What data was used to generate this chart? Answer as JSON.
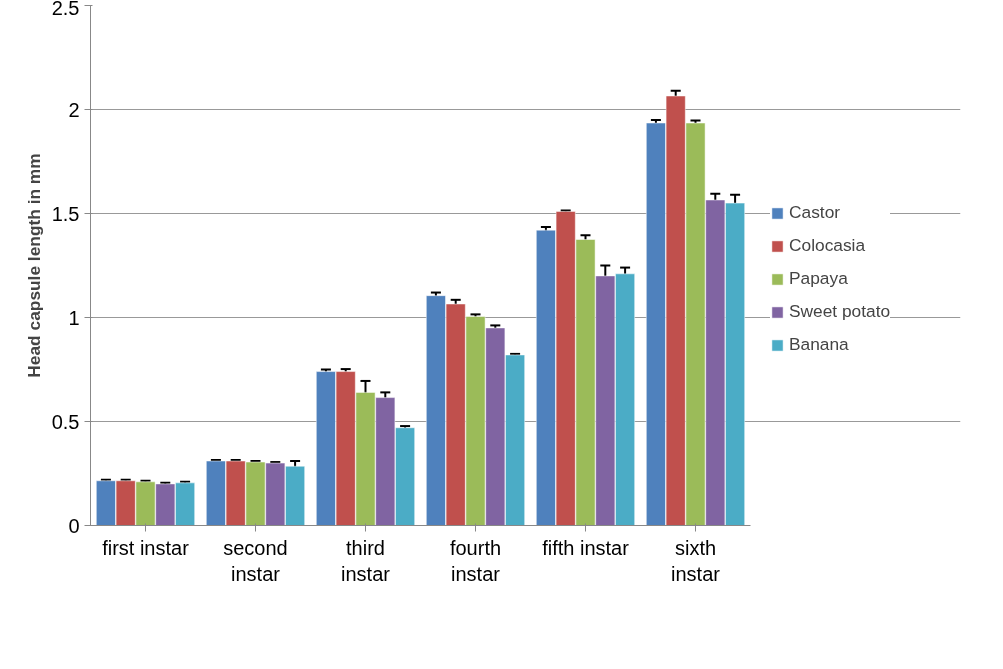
{
  "chart_data": {
    "type": "bar",
    "ylabel": "Head capsule length in mm",
    "categories": [
      "first instar",
      "second instar",
      "third instar",
      "fourth instar",
      "fifth instar",
      "sixth instar"
    ],
    "series": [
      {
        "name": "Castor",
        "color": "#4f81bd",
        "values": [
          0.215,
          0.31,
          0.74,
          1.105,
          1.42,
          1.935
        ],
        "errors": [
          0.005,
          0.005,
          0.01,
          0.015,
          0.015,
          0.015
        ]
      },
      {
        "name": "Colocasia",
        "color": "#c0504d",
        "values": [
          0.215,
          0.31,
          0.74,
          1.065,
          1.51,
          2.065
        ],
        "errors": [
          0.005,
          0.005,
          0.012,
          0.02,
          0.005,
          0.025
        ]
      },
      {
        "name": "Papaya",
        "color": "#9bbb59",
        "values": [
          0.21,
          0.305,
          0.64,
          1.005,
          1.375,
          1.935
        ],
        "errors": [
          0.005,
          0.005,
          0.055,
          0.01,
          0.02,
          0.012
        ]
      },
      {
        "name": "Sweet potato",
        "color": "#8064a2",
        "values": [
          0.2,
          0.3,
          0.615,
          0.95,
          1.2,
          1.565
        ],
        "errors": [
          0.005,
          0.005,
          0.025,
          0.012,
          0.05,
          0.03
        ]
      },
      {
        "name": "Banana",
        "color": "#4bacc6",
        "values": [
          0.205,
          0.285,
          0.47,
          0.82,
          1.21,
          1.55
        ],
        "errors": [
          0.005,
          0.025,
          0.008,
          0.005,
          0.03,
          0.04
        ]
      }
    ],
    "ylim": [
      0,
      2.5
    ],
    "yticks": [
      0,
      0.5,
      1,
      1.5,
      2,
      2.5
    ],
    "grid": "y",
    "legend": "right"
  }
}
